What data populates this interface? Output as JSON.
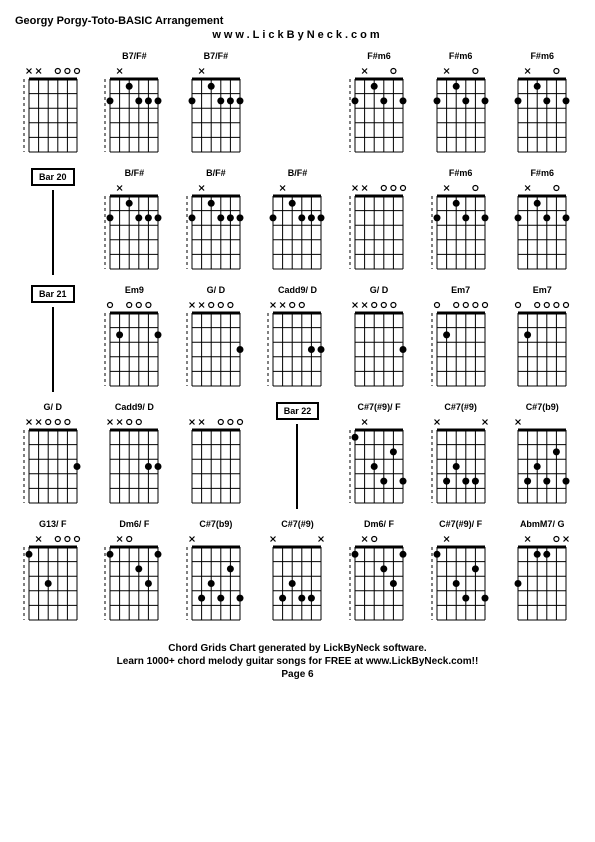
{
  "title": "Georgy Porgy-Toto-BASIC Arrangement",
  "url": "www.LickByNeck.com",
  "footer": {
    "line1": "Chord Grids Chart generated by LickByNeck software.",
    "line2": "Learn 1000+ chord melody guitar songs for FREE at www.LickByNeck.com!!",
    "page": "Page 6"
  },
  "style": {
    "diagram_width": 64,
    "diagram_height": 95,
    "strings": 6,
    "frets": 5,
    "line_color": "#000000",
    "dot_radius": 3.5,
    "open_radius": 2.5,
    "x_size": 5
  },
  "rows": [
    [
      {
        "type": "chord",
        "name": "",
        "top": [
          "x",
          "x",
          "",
          "o",
          "o",
          "o"
        ],
        "dots": [],
        "barre": null,
        "dashed": true
      },
      {
        "type": "chord",
        "name": "B7/F#",
        "top": [
          "",
          "x",
          "",
          "",
          "",
          ""
        ],
        "dots": [
          [
            1,
            2
          ],
          [
            3,
            1
          ],
          [
            4,
            2
          ],
          [
            5,
            2
          ],
          [
            6,
            2
          ]
        ],
        "barre": null,
        "dashed": true
      },
      {
        "type": "chord",
        "name": "B7/F#",
        "top": [
          "",
          "x",
          "",
          "",
          "",
          ""
        ],
        "dots": [
          [
            1,
            2
          ],
          [
            3,
            1
          ],
          [
            4,
            2
          ],
          [
            5,
            2
          ],
          [
            6,
            2
          ]
        ],
        "barre": null,
        "dashed": false
      },
      {
        "type": "blank"
      },
      {
        "type": "chord",
        "name": "F#m6",
        "top": [
          "",
          "x",
          "",
          "",
          "o",
          ""
        ],
        "dots": [
          [
            1,
            2
          ],
          [
            3,
            1
          ],
          [
            4,
            2
          ],
          [
            6,
            2
          ]
        ],
        "barre": null,
        "dashed": true
      },
      {
        "type": "chord",
        "name": "F#m6",
        "top": [
          "",
          "x",
          "",
          "",
          "o",
          ""
        ],
        "dots": [
          [
            1,
            2
          ],
          [
            3,
            1
          ],
          [
            4,
            2
          ],
          [
            6,
            2
          ]
        ],
        "barre": null,
        "dashed": false
      },
      {
        "type": "chord",
        "name": "F#m6",
        "top": [
          "",
          "x",
          "",
          "",
          "o",
          ""
        ],
        "dots": [
          [
            1,
            2
          ],
          [
            3,
            1
          ],
          [
            4,
            2
          ],
          [
            6,
            2
          ]
        ],
        "barre": null,
        "dashed": false
      }
    ],
    [
      {
        "type": "bar",
        "label": "Bar 20"
      },
      {
        "type": "chord",
        "name": "B/F#",
        "top": [
          "",
          "x",
          "",
          "",
          "",
          ""
        ],
        "dots": [
          [
            1,
            2
          ],
          [
            3,
            1
          ],
          [
            4,
            2
          ],
          [
            5,
            2
          ],
          [
            6,
            2
          ]
        ],
        "barre": null,
        "dashed": true
      },
      {
        "type": "chord",
        "name": "B/F#",
        "top": [
          "",
          "x",
          "",
          "",
          "",
          ""
        ],
        "dots": [
          [
            1,
            2
          ],
          [
            3,
            1
          ],
          [
            4,
            2
          ],
          [
            5,
            2
          ],
          [
            6,
            2
          ]
        ],
        "barre": null,
        "dashed": true
      },
      {
        "type": "chord",
        "name": "B/F#",
        "top": [
          "",
          "x",
          "",
          "",
          "",
          ""
        ],
        "dots": [
          [
            1,
            2
          ],
          [
            3,
            1
          ],
          [
            4,
            2
          ],
          [
            5,
            2
          ],
          [
            6,
            2
          ]
        ],
        "barre": null,
        "dashed": false
      },
      {
        "type": "chord",
        "name": "",
        "top": [
          "x",
          "x",
          "",
          "o",
          "o",
          "o"
        ],
        "dots": [],
        "barre": null,
        "dashed": true
      },
      {
        "type": "chord",
        "name": "F#m6",
        "top": [
          "",
          "x",
          "",
          "",
          "o",
          ""
        ],
        "dots": [
          [
            1,
            2
          ],
          [
            3,
            1
          ],
          [
            4,
            2
          ],
          [
            6,
            2
          ]
        ],
        "barre": null,
        "dashed": true
      },
      {
        "type": "chord",
        "name": "F#m6",
        "top": [
          "",
          "x",
          "",
          "",
          "o",
          ""
        ],
        "dots": [
          [
            1,
            2
          ],
          [
            3,
            1
          ],
          [
            4,
            2
          ],
          [
            6,
            2
          ]
        ],
        "barre": null,
        "dashed": false
      }
    ],
    [
      {
        "type": "bar",
        "label": "Bar 21"
      },
      {
        "type": "chord",
        "name": "Em9",
        "top": [
          "o",
          "",
          "o",
          "o",
          "o",
          ""
        ],
        "dots": [
          [
            2,
            2
          ],
          [
            6,
            2
          ]
        ],
        "barre": null,
        "dashed": true
      },
      {
        "type": "chord",
        "name": "G/ D",
        "top": [
          "x",
          "x",
          "o",
          "o",
          "o",
          ""
        ],
        "dots": [
          [
            6,
            3
          ]
        ],
        "barre": null,
        "dashed": true
      },
      {
        "type": "chord",
        "name": "Cadd9/ D",
        "top": [
          "x",
          "x",
          "o",
          "o",
          "",
          ""
        ],
        "dots": [
          [
            5,
            3
          ],
          [
            6,
            3
          ]
        ],
        "barre": null,
        "dashed": true
      },
      {
        "type": "chord",
        "name": "G/ D",
        "top": [
          "x",
          "x",
          "o",
          "o",
          "o",
          ""
        ],
        "dots": [
          [
            6,
            3
          ]
        ],
        "barre": null,
        "dashed": false
      },
      {
        "type": "chord",
        "name": "Em7",
        "top": [
          "o",
          "",
          "o",
          "o",
          "o",
          "o"
        ],
        "dots": [
          [
            2,
            2
          ]
        ],
        "barre": null,
        "dashed": true
      },
      {
        "type": "chord",
        "name": "Em7",
        "top": [
          "o",
          "",
          "o",
          "o",
          "o",
          "o"
        ],
        "dots": [
          [
            2,
            2
          ]
        ],
        "barre": null,
        "dashed": false
      }
    ],
    [
      {
        "type": "chord",
        "name": "G/ D",
        "top": [
          "x",
          "x",
          "o",
          "o",
          "o",
          ""
        ],
        "dots": [
          [
            6,
            3
          ]
        ],
        "barre": null,
        "dashed": true
      },
      {
        "type": "chord",
        "name": "Cadd9/ D",
        "top": [
          "x",
          "x",
          "o",
          "o",
          "",
          ""
        ],
        "dots": [
          [
            5,
            3
          ],
          [
            6,
            3
          ]
        ],
        "barre": null,
        "dashed": false
      },
      {
        "type": "chord",
        "name": "",
        "top": [
          "x",
          "x",
          "",
          "o",
          "o",
          "o"
        ],
        "dots": [],
        "barre": null,
        "dashed": false
      },
      {
        "type": "bar",
        "label": "Bar 22"
      },
      {
        "type": "chord",
        "name": "C#7(#9)/ F",
        "top": [
          "",
          "x",
          "",
          "",
          "",
          ""
        ],
        "dots": [
          [
            1,
            1
          ],
          [
            3,
            3
          ],
          [
            4,
            4
          ],
          [
            5,
            2
          ],
          [
            6,
            4
          ]
        ],
        "barre": null,
        "dashed": true
      },
      {
        "type": "chord",
        "name": "C#7(#9)",
        "top": [
          "x",
          "",
          "",
          "",
          "",
          "x"
        ],
        "dots": [
          [
            2,
            4
          ],
          [
            3,
            3
          ],
          [
            4,
            4
          ],
          [
            5,
            4
          ]
        ],
        "barre": null,
        "dashed": true
      },
      {
        "type": "chord",
        "name": "C#7(b9)",
        "top": [
          "x",
          "",
          "",
          "",
          "",
          ""
        ],
        "dots": [
          [
            2,
            4
          ],
          [
            3,
            3
          ],
          [
            4,
            4
          ],
          [
            5,
            2
          ],
          [
            6,
            4
          ]
        ],
        "barre": null,
        "dashed": false
      }
    ],
    [
      {
        "type": "chord",
        "name": "G13/ F",
        "top": [
          "",
          "x",
          "",
          "o",
          "o",
          "o"
        ],
        "dots": [
          [
            1,
            1
          ],
          [
            3,
            3
          ]
        ],
        "barre": null,
        "dashed": true
      },
      {
        "type": "chord",
        "name": "Dm6/ F",
        "top": [
          "",
          "x",
          "o",
          "",
          "",
          ""
        ],
        "dots": [
          [
            1,
            1
          ],
          [
            4,
            2
          ],
          [
            5,
            3
          ],
          [
            6,
            1
          ]
        ],
        "barre": null,
        "dashed": true
      },
      {
        "type": "chord",
        "name": "C#7(b9)",
        "top": [
          "x",
          "",
          "",
          "",
          "",
          ""
        ],
        "dots": [
          [
            2,
            4
          ],
          [
            3,
            3
          ],
          [
            4,
            4
          ],
          [
            5,
            2
          ],
          [
            6,
            4
          ]
        ],
        "barre": null,
        "dashed": true
      },
      {
        "type": "chord",
        "name": "C#7(#9)",
        "top": [
          "x",
          "",
          "",
          "",
          "",
          "x"
        ],
        "dots": [
          [
            2,
            4
          ],
          [
            3,
            3
          ],
          [
            4,
            4
          ],
          [
            5,
            4
          ]
        ],
        "barre": null,
        "dashed": false
      },
      {
        "type": "chord",
        "name": "Dm6/ F",
        "top": [
          "",
          "x",
          "o",
          "",
          "",
          ""
        ],
        "dots": [
          [
            1,
            1
          ],
          [
            4,
            2
          ],
          [
            5,
            3
          ],
          [
            6,
            1
          ]
        ],
        "barre": null,
        "dashed": true
      },
      {
        "type": "chord",
        "name": "C#7(#9)/ F",
        "top": [
          "",
          "x",
          "",
          "",
          "",
          ""
        ],
        "dots": [
          [
            1,
            1
          ],
          [
            3,
            3
          ],
          [
            4,
            4
          ],
          [
            5,
            2
          ],
          [
            6,
            4
          ]
        ],
        "barre": null,
        "dashed": true
      },
      {
        "type": "chord",
        "name": "AbmM7/ G",
        "top": [
          "",
          "x",
          "",
          "",
          "o",
          "x"
        ],
        "dots": [
          [
            1,
            3
          ],
          [
            3,
            1
          ],
          [
            4,
            1
          ]
        ],
        "barre": null,
        "dashed": false
      }
    ]
  ]
}
